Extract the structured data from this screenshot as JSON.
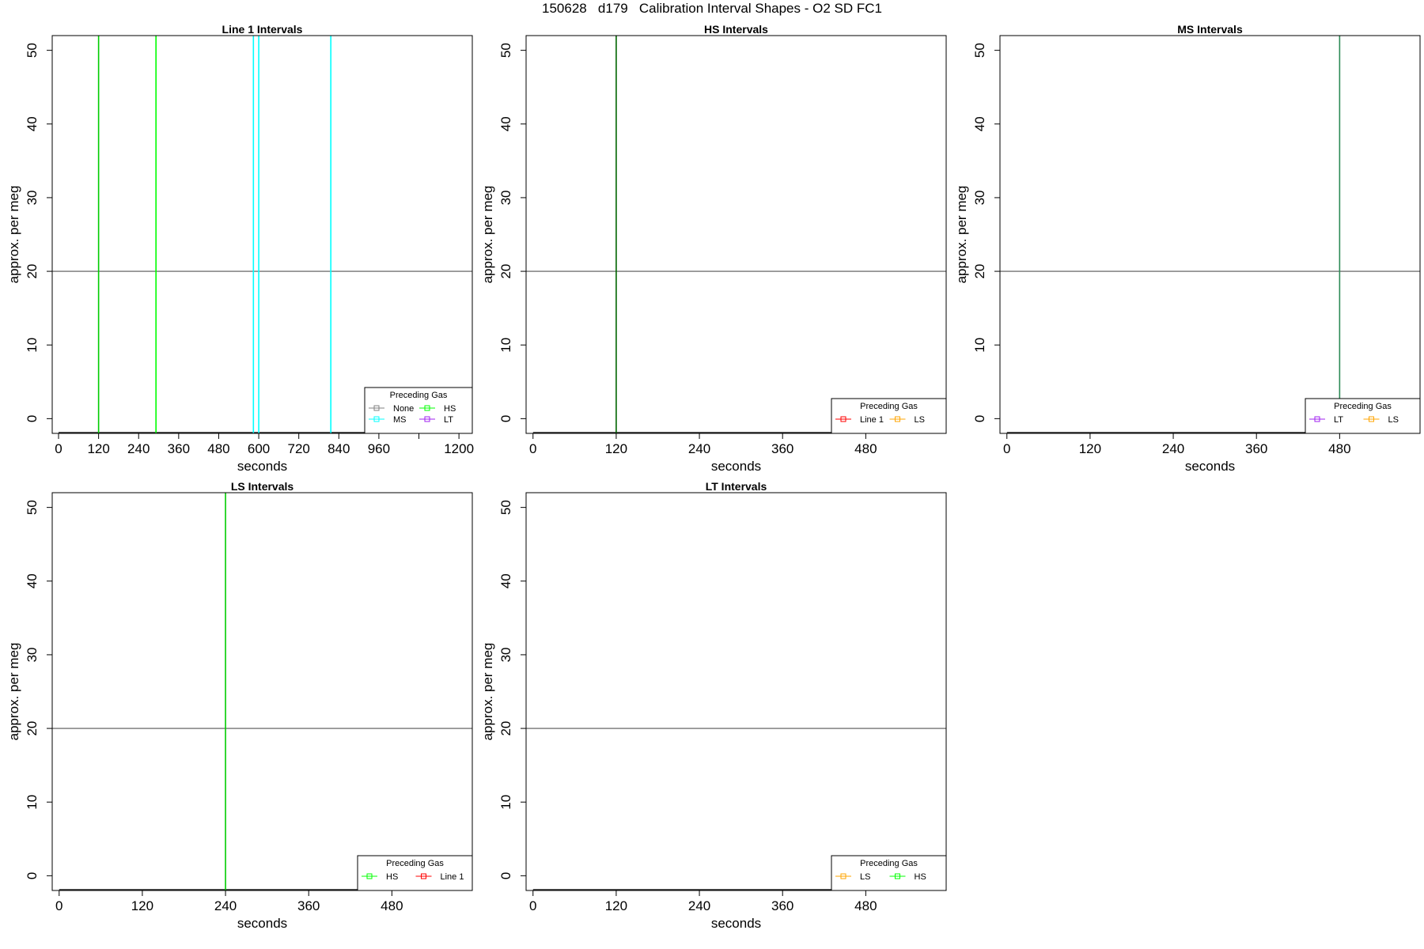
{
  "page_title": "150628   d179   Calibration Interval Shapes - O2 SD FC1",
  "chart_data": [
    {
      "type": "line",
      "title": "Line 1 Intervals",
      "xlabel": "seconds",
      "ylabel": "approx. per meg",
      "xlim": [
        -19,
        1240
      ],
      "ylim": [
        -2,
        52
      ],
      "xticks": [
        0,
        120,
        240,
        360,
        480,
        600,
        720,
        840,
        960,
        1080,
        1200
      ],
      "xtick_labels": [
        "0",
        "120",
        "240",
        "360",
        "480",
        "600",
        "720",
        "840",
        "960",
        "",
        "1200"
      ],
      "yticks": [
        0,
        10,
        20,
        30,
        40,
        50
      ],
      "hline": 20,
      "baseline": -2,
      "vlines": [
        {
          "x": 120,
          "color": "#00cc00"
        },
        {
          "x": 292,
          "color": "#00ff00"
        },
        {
          "x": 584,
          "color": "#00ffff"
        },
        {
          "x": 600,
          "color": "#00ffff"
        },
        {
          "x": 816,
          "color": "#00ffff"
        }
      ],
      "legend": {
        "title": "Preceding Gas",
        "position": "bottom-right",
        "columns": 2,
        "entries": [
          {
            "label": "None",
            "color": "#808080"
          },
          {
            "label": "HS",
            "color": "#00ff00"
          },
          {
            "label": "MS",
            "color": "#00ffff"
          },
          {
            "label": "LT",
            "color": "#a020f0"
          }
        ]
      }
    },
    {
      "type": "line",
      "title": "HS Intervals",
      "xlabel": "seconds",
      "ylabel": "approx. per meg",
      "xlim": [
        -10,
        596
      ],
      "ylim": [
        -2,
        52
      ],
      "xticks": [
        0,
        120,
        240,
        360,
        480
      ],
      "xtick_labels": [
        "0",
        "120",
        "240",
        "360",
        "480"
      ],
      "yticks": [
        0,
        10,
        20,
        30,
        40,
        50
      ],
      "hline": 20,
      "baseline": -2,
      "vlines": [
        {
          "x": 120,
          "color": "#006400"
        }
      ],
      "legend": {
        "title": "Preceding Gas",
        "position": "bottom-right",
        "columns": 2,
        "entries": [
          {
            "label": "Line 1",
            "color": "#ff0000"
          },
          {
            "label": "LS",
            "color": "#ffa500"
          }
        ]
      }
    },
    {
      "type": "line",
      "title": "MS Intervals",
      "xlabel": "seconds",
      "ylabel": "approx. per meg",
      "xlim": [
        -10,
        596
      ],
      "ylim": [
        -2,
        52
      ],
      "xticks": [
        0,
        120,
        240,
        360,
        480
      ],
      "xtick_labels": [
        "0",
        "120",
        "240",
        "360",
        "480"
      ],
      "yticks": [
        0,
        10,
        20,
        30,
        40,
        50
      ],
      "hline": 20,
      "baseline": -2,
      "vlines": [
        {
          "x": 480,
          "color": "#2e8b57"
        }
      ],
      "legend": {
        "title": "Preceding Gas",
        "position": "bottom-right",
        "columns": 2,
        "entries": [
          {
            "label": "LT",
            "color": "#a020f0"
          },
          {
            "label": "LS",
            "color": "#ffa500"
          }
        ]
      }
    },
    {
      "type": "line",
      "title": "LS Intervals",
      "xlabel": "seconds",
      "ylabel": "approx. per meg",
      "xlim": [
        -10,
        596
      ],
      "ylim": [
        -2,
        52
      ],
      "xticks": [
        0,
        120,
        240,
        360,
        480
      ],
      "xtick_labels": [
        "0",
        "120",
        "240",
        "360",
        "480"
      ],
      "yticks": [
        0,
        10,
        20,
        30,
        40,
        50
      ],
      "hline": 20,
      "baseline": -2,
      "vlines": [
        {
          "x": 240,
          "color": "#00cc00"
        }
      ],
      "legend": {
        "title": "Preceding Gas",
        "position": "bottom-right",
        "columns": 2,
        "entries": [
          {
            "label": "HS",
            "color": "#00ff00"
          },
          {
            "label": "Line 1",
            "color": "#ff0000"
          }
        ]
      }
    },
    {
      "type": "line",
      "title": "LT Intervals",
      "xlabel": "seconds",
      "ylabel": "approx. per meg",
      "xlim": [
        -10,
        596
      ],
      "ylim": [
        -2,
        52
      ],
      "xticks": [
        0,
        120,
        240,
        360,
        480
      ],
      "xtick_labels": [
        "0",
        "120",
        "240",
        "360",
        "480"
      ],
      "yticks": [
        0,
        10,
        20,
        30,
        40,
        50
      ],
      "hline": 20,
      "baseline": -2,
      "vlines": [],
      "legend": {
        "title": "Preceding Gas",
        "position": "bottom-right",
        "columns": 2,
        "entries": [
          {
            "label": "LS",
            "color": "#ffa500"
          },
          {
            "label": "HS",
            "color": "#00ff00"
          }
        ]
      }
    }
  ]
}
